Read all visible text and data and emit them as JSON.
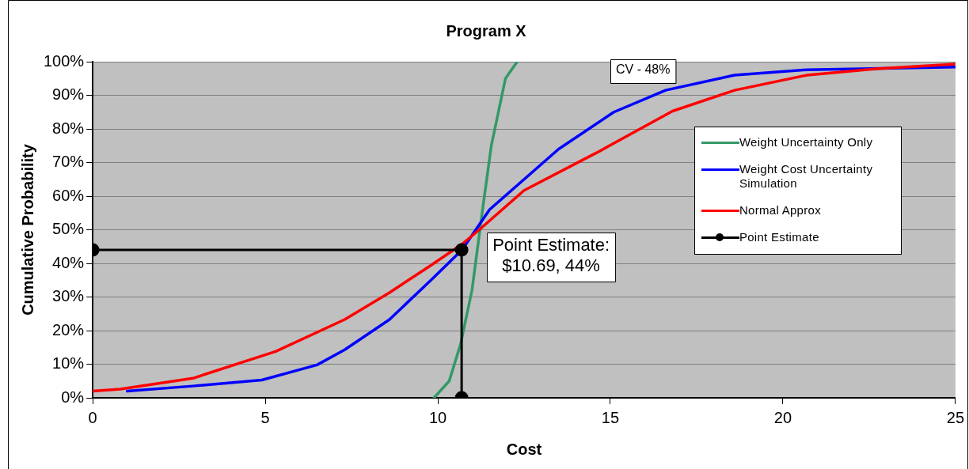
{
  "chart_data": {
    "type": "line",
    "title": "Program X",
    "xlabel": "Cost",
    "ylabel": "Cumulative Probability",
    "xlim": [
      0,
      25
    ],
    "xticks": [
      0,
      5,
      10,
      15,
      20,
      25
    ],
    "ylim": [
      0,
      100
    ],
    "yticks": [
      {
        "value": 0,
        "label": "0%"
      },
      {
        "value": 10,
        "label": "10%"
      },
      {
        "value": 20,
        "label": "20%"
      },
      {
        "value": 30,
        "label": "30%"
      },
      {
        "value": 40,
        "label": "40%"
      },
      {
        "value": 50,
        "label": "50%"
      },
      {
        "value": 60,
        "label": "60%"
      },
      {
        "value": 70,
        "label": "70%"
      },
      {
        "value": 80,
        "label": "80%"
      },
      {
        "value": 90,
        "label": "90%"
      },
      {
        "value": 100,
        "label": "100%"
      }
    ],
    "grid": "y",
    "legend": "right",
    "marker": "none",
    "series": [
      {
        "name": "Weight Uncertainty Only",
        "color": "#339966",
        "x": [
          9.89,
          10.33,
          10.66,
          10.99,
          11.31,
          11.55,
          11.96,
          12.3
        ],
        "values": [
          0,
          5,
          16,
          32,
          57,
          75,
          95,
          100
        ]
      },
      {
        "name": "Weight  Cost Uncertainty Simulation",
        "color": "#0000ff",
        "x": [
          1,
          2.9,
          4.9,
          6.5,
          7.3,
          8.6,
          9.8,
          10.7,
          11.5,
          13.5,
          15.1,
          16.6,
          18.6,
          20.7,
          25
        ],
        "values": [
          2,
          3.5,
          5.3,
          9.8,
          14.3,
          23.3,
          35,
          44,
          56,
          74,
          85,
          91.5,
          96,
          97.6,
          98.4
        ]
      },
      {
        "name": "Normal Approx",
        "color": "#ff0000",
        "x": [
          0,
          0.8,
          2.9,
          5.3,
          7.3,
          8.6,
          9.8,
          10.7,
          11.2,
          12.5,
          14.6,
          16.8,
          18.6,
          20.7,
          22.7,
          25
        ],
        "values": [
          2,
          2.6,
          5.8,
          13.8,
          23.3,
          31.3,
          39.4,
          45.7,
          50,
          61.7,
          72.9,
          85.3,
          91.5,
          96,
          97.9,
          99.3
        ]
      },
      {
        "name": "Point Estimate",
        "color": "#000000",
        "marker": "circle",
        "x": [
          0,
          10.69,
          10.69
        ],
        "values": [
          44,
          44,
          0
        ]
      }
    ],
    "annotations": [
      "CV - 48%",
      {
        "text": "Point Estimate:\n$10.69, 44%",
        "x": 10.69,
        "y": 44
      }
    ]
  }
}
